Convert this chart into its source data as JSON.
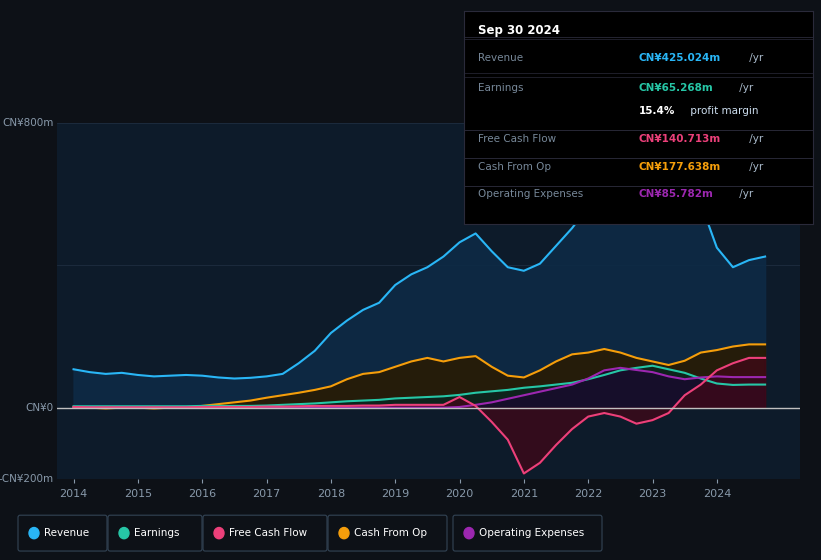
{
  "background_color": "#0d1117",
  "plot_bg_color": "#0d1b2a",
  "info_box_bg": "#000000",
  "info_box_border": "#2a2a3a",
  "ylim": [
    -200,
    800
  ],
  "grid_lines": [
    800,
    400,
    0,
    -200
  ],
  "grid_color": "#1e2d40",
  "zero_line_color": "#c0c0c0",
  "axis_label_color": "#8899aa",
  "text_color_dim": "#778899",
  "xlim": [
    2013.75,
    2025.3
  ],
  "xticks": [
    2014,
    2015,
    2016,
    2017,
    2018,
    2019,
    2020,
    2021,
    2022,
    2023,
    2024
  ],
  "series": {
    "revenue": {
      "color": "#29b6f6",
      "fill_color": "#0d2a45",
      "fill_alpha": 0.9,
      "label": "Revenue",
      "x": [
        2014.0,
        2014.25,
        2014.5,
        2014.75,
        2015.0,
        2015.25,
        2015.5,
        2015.75,
        2016.0,
        2016.25,
        2016.5,
        2016.75,
        2017.0,
        2017.25,
        2017.5,
        2017.75,
        2018.0,
        2018.25,
        2018.5,
        2018.75,
        2019.0,
        2019.25,
        2019.5,
        2019.75,
        2020.0,
        2020.25,
        2020.5,
        2020.75,
        2021.0,
        2021.25,
        2021.5,
        2021.75,
        2022.0,
        2022.25,
        2022.5,
        2022.75,
        2023.0,
        2023.25,
        2023.5,
        2023.75,
        2024.0,
        2024.25,
        2024.5,
        2024.75
      ],
      "y": [
        108,
        100,
        95,
        98,
        92,
        88,
        90,
        92,
        90,
        85,
        82,
        84,
        88,
        95,
        125,
        160,
        210,
        245,
        275,
        295,
        345,
        375,
        395,
        425,
        465,
        490,
        440,
        395,
        385,
        405,
        455,
        505,
        565,
        625,
        705,
        760,
        800,
        785,
        680,
        575,
        450,
        395,
        415,
        425
      ]
    },
    "cash_from_op": {
      "color": "#f59e0b",
      "fill_color": "#2a1a00",
      "fill_alpha": 0.85,
      "label": "Cash From Op",
      "x": [
        2014.0,
        2014.25,
        2014.5,
        2014.75,
        2015.0,
        2015.25,
        2015.5,
        2015.75,
        2016.0,
        2016.25,
        2016.5,
        2016.75,
        2017.0,
        2017.25,
        2017.5,
        2017.75,
        2018.0,
        2018.25,
        2018.5,
        2018.75,
        2019.0,
        2019.25,
        2019.5,
        2019.75,
        2020.0,
        2020.25,
        2020.5,
        2020.75,
        2021.0,
        2021.25,
        2021.5,
        2021.75,
        2022.0,
        2022.25,
        2022.5,
        2022.75,
        2023.0,
        2023.25,
        2023.5,
        2023.75,
        2024.0,
        2024.25,
        2024.5,
        2024.75
      ],
      "y": [
        2,
        0,
        -2,
        0,
        0,
        -2,
        0,
        0,
        5,
        10,
        15,
        20,
        28,
        35,
        42,
        50,
        60,
        80,
        95,
        100,
        115,
        130,
        140,
        130,
        140,
        145,
        115,
        90,
        85,
        105,
        130,
        150,
        155,
        165,
        155,
        140,
        130,
        120,
        132,
        155,
        162,
        172,
        178,
        178
      ]
    },
    "earnings": {
      "color": "#26c6a6",
      "fill_color": "#0a2520",
      "fill_alpha": 0.85,
      "label": "Earnings",
      "x": [
        2014.0,
        2014.25,
        2014.5,
        2014.75,
        2015.0,
        2015.25,
        2015.5,
        2015.75,
        2016.0,
        2016.25,
        2016.5,
        2016.75,
        2017.0,
        2017.25,
        2017.5,
        2017.75,
        2018.0,
        2018.25,
        2018.5,
        2018.75,
        2019.0,
        2019.25,
        2019.5,
        2019.75,
        2020.0,
        2020.25,
        2020.5,
        2020.75,
        2021.0,
        2021.25,
        2021.5,
        2021.75,
        2022.0,
        2022.25,
        2022.5,
        2022.75,
        2023.0,
        2023.25,
        2023.5,
        2023.75,
        2024.0,
        2024.25,
        2024.5,
        2024.75
      ],
      "y": [
        4,
        4,
        4,
        4,
        4,
        4,
        4,
        4,
        5,
        5,
        5,
        5,
        6,
        8,
        10,
        12,
        15,
        18,
        20,
        22,
        26,
        28,
        30,
        32,
        36,
        42,
        46,
        50,
        56,
        60,
        65,
        70,
        80,
        92,
        105,
        112,
        118,
        108,
        98,
        82,
        68,
        64,
        65,
        65
      ]
    },
    "operating_expenses": {
      "color": "#9c27b0",
      "fill_color": "#1a0830",
      "fill_alpha": 0.75,
      "label": "Operating Expenses",
      "x": [
        2014.0,
        2014.25,
        2014.5,
        2014.75,
        2015.0,
        2015.25,
        2015.5,
        2015.75,
        2016.0,
        2016.25,
        2016.5,
        2016.75,
        2017.0,
        2017.25,
        2017.5,
        2017.75,
        2018.0,
        2018.25,
        2018.5,
        2018.75,
        2019.0,
        2019.25,
        2019.5,
        2019.75,
        2020.0,
        2020.25,
        2020.5,
        2020.75,
        2021.0,
        2021.25,
        2021.5,
        2021.75,
        2022.0,
        2022.25,
        2022.5,
        2022.75,
        2023.0,
        2023.25,
        2023.5,
        2023.75,
        2024.0,
        2024.25,
        2024.5,
        2024.75
      ],
      "y": [
        0,
        0,
        0,
        0,
        0,
        0,
        0,
        0,
        0,
        0,
        0,
        0,
        0,
        0,
        0,
        0,
        0,
        0,
        0,
        0,
        0,
        0,
        0,
        0,
        2,
        8,
        15,
        25,
        35,
        45,
        55,
        65,
        82,
        105,
        112,
        106,
        100,
        88,
        80,
        85,
        88,
        86,
        86,
        86
      ]
    },
    "free_cash_flow": {
      "color": "#ec407a",
      "fill_color": "#400818",
      "fill_alpha": 0.75,
      "label": "Free Cash Flow",
      "x": [
        2014.0,
        2014.25,
        2014.5,
        2014.75,
        2015.0,
        2015.25,
        2015.5,
        2015.75,
        2016.0,
        2016.25,
        2016.5,
        2016.75,
        2017.0,
        2017.25,
        2017.5,
        2017.75,
        2018.0,
        2018.25,
        2018.5,
        2018.75,
        2019.0,
        2019.25,
        2019.5,
        2019.75,
        2020.0,
        2020.25,
        2020.5,
        2020.75,
        2021.0,
        2021.25,
        2021.5,
        2021.75,
        2022.0,
        2022.25,
        2022.5,
        2022.75,
        2023.0,
        2023.25,
        2023.5,
        2023.75,
        2024.0,
        2024.25,
        2024.5,
        2024.75
      ],
      "y": [
        2,
        1,
        1,
        1,
        1,
        1,
        1,
        1,
        2,
        2,
        2,
        2,
        3,
        3,
        4,
        5,
        5,
        5,
        6,
        6,
        8,
        8,
        8,
        8,
        30,
        5,
        -40,
        -90,
        -185,
        -155,
        -105,
        -60,
        -25,
        -15,
        -25,
        -45,
        -35,
        -15,
        35,
        65,
        105,
        125,
        140,
        140
      ]
    }
  },
  "info_box": {
    "date": "Sep 30 2024",
    "rows": [
      {
        "label": "Revenue",
        "value": "CN¥425.024m",
        "suffix": " /yr",
        "color": "#29b6f6"
      },
      {
        "label": "Earnings",
        "value": "CN¥65.268m",
        "suffix": " /yr",
        "color": "#26c6a6"
      },
      {
        "label": "",
        "value": "15.4%",
        "suffix": " profit margin",
        "color": "#ffffff"
      },
      {
        "label": "Free Cash Flow",
        "value": "CN¥140.713m",
        "suffix": " /yr",
        "color": "#ec407a"
      },
      {
        "label": "Cash From Op",
        "value": "CN¥177.638m",
        "suffix": " /yr",
        "color": "#f59e0b"
      },
      {
        "label": "Operating Expenses",
        "value": "CN¥85.782m",
        "suffix": " /yr",
        "color": "#9c27b0"
      }
    ]
  },
  "legend_items": [
    {
      "label": "Revenue",
      "color": "#29b6f6"
    },
    {
      "label": "Earnings",
      "color": "#26c6a6"
    },
    {
      "label": "Free Cash Flow",
      "color": "#ec407a"
    },
    {
      "label": "Cash From Op",
      "color": "#f59e0b"
    },
    {
      "label": "Operating Expenses",
      "color": "#9c27b0"
    }
  ]
}
